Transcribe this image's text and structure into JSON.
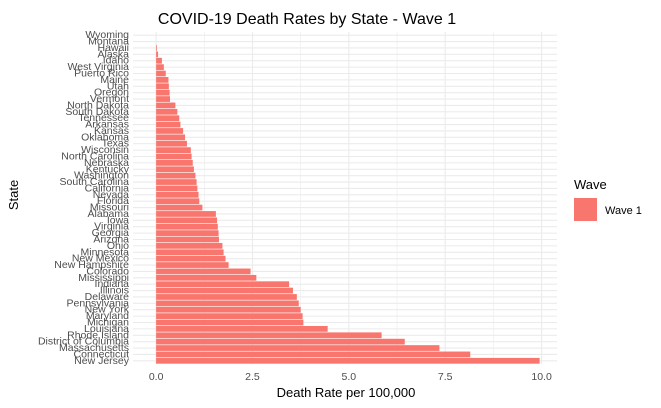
{
  "chart_data": {
    "type": "bar",
    "orientation": "horizontal",
    "title": "COVID-19 Death Rates by State - Wave 1",
    "xlabel": "Death Rate per 100,000",
    "ylabel": "State",
    "xlim": [
      -0.6,
      10.4
    ],
    "x_ticks": [
      0.0,
      2.5,
      5.0,
      7.5,
      10.0
    ],
    "x_tick_labels": [
      "0.0",
      "2.5",
      "5.0",
      "7.5",
      "10.0"
    ],
    "grid": true,
    "legend": {
      "title": "Wave",
      "placement": "right",
      "entries": [
        "Wave 1"
      ]
    },
    "colors": {
      "bar": "#F8766D",
      "panel": "#ffffff",
      "grid": "#ebebeb"
    },
    "categories": [
      "Wyoming",
      "Montana",
      "Hawaii",
      "Alaska",
      "Idaho",
      "West Virginia",
      "Puerto Rico",
      "Maine",
      "Utah",
      "Oregon",
      "Vermont",
      "North Dakota",
      "South Dakota",
      "Tennessee",
      "Arkansas",
      "Kansas",
      "Oklahoma",
      "Texas",
      "Wisconsin",
      "North Carolina",
      "Nebraska",
      "Kentucky",
      "Washington",
      "South Carolina",
      "California",
      "Nevada",
      "Florida",
      "Missouri",
      "Alabama",
      "Iowa",
      "Virginia",
      "Georgia",
      "Arizona",
      "Ohio",
      "Minnesota",
      "New Mexico",
      "New Hampshire",
      "Colorado",
      "Mississippi",
      "Indiana",
      "Illinois",
      "Delaware",
      "Pennsylvania",
      "New York",
      "Maryland",
      "Michigan",
      "Louisiana",
      "Rhode Island",
      "District of Columbia",
      "Massachusetts",
      "Connecticut",
      "New Jersey"
    ],
    "series": [
      {
        "name": "Wave 1",
        "values": [
          0.0,
          0.0,
          0.02,
          0.05,
          0.15,
          0.2,
          0.25,
          0.32,
          0.33,
          0.35,
          0.36,
          0.5,
          0.55,
          0.6,
          0.63,
          0.7,
          0.75,
          0.8,
          0.9,
          0.92,
          0.95,
          0.98,
          1.02,
          1.05,
          1.07,
          1.1,
          1.12,
          1.2,
          1.55,
          1.58,
          1.6,
          1.62,
          1.63,
          1.72,
          1.75,
          1.8,
          1.88,
          2.45,
          2.6,
          3.45,
          3.55,
          3.65,
          3.7,
          3.75,
          3.8,
          3.82,
          4.45,
          5.85,
          6.45,
          7.35,
          8.15,
          9.95
        ]
      }
    ]
  }
}
